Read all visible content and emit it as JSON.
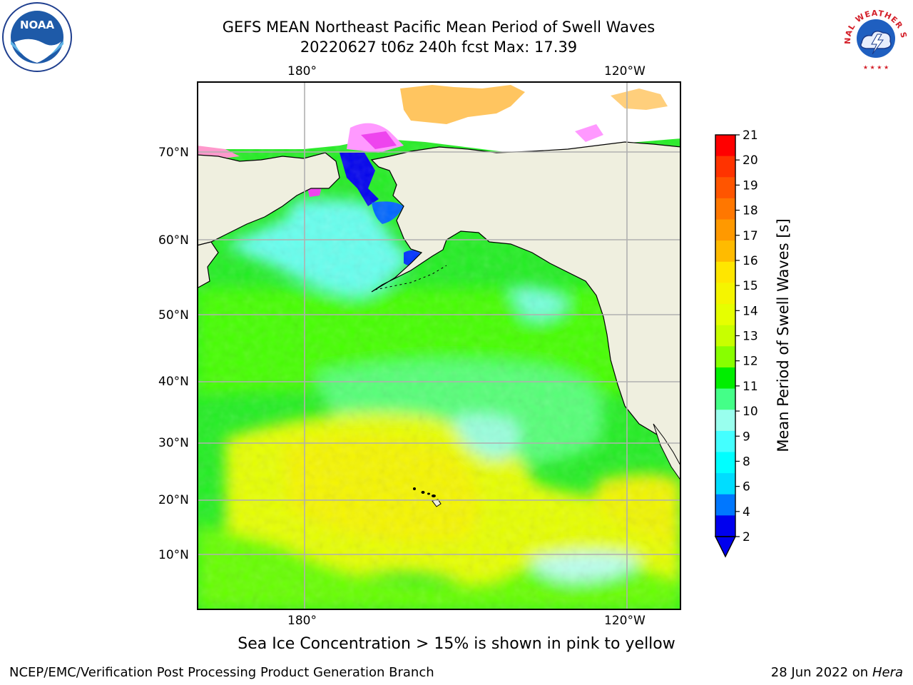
{
  "header": {
    "title_line1": "GEFS MEAN Northeast Pacific Mean Period of Swell Waves",
    "title_line2": "20220627 t06z 240h fcst   Max: 17.39"
  },
  "logos": {
    "left": {
      "name": "noaa-logo",
      "text": "NOAA"
    },
    "right": {
      "name": "nws-logo",
      "text": "NATIONAL WEATHER SERVICE"
    }
  },
  "map": {
    "lon_ticks_top": [
      "180°",
      "120°W"
    ],
    "lon_ticks_bottom": [
      "180°",
      "120°W"
    ],
    "lat_ticks": [
      "70°N",
      "60°N",
      "50°N",
      "40°N",
      "30°N",
      "20°N",
      "10°N"
    ],
    "land_color": "#efefdf",
    "grid_color": "#b0b0b0"
  },
  "colorbar": {
    "label": "Mean Period of Swell Waves [s]",
    "ticks": [
      "21",
      "20",
      "19",
      "18",
      "17",
      "16",
      "15",
      "14",
      "13",
      "12",
      "11",
      "10",
      "9",
      "8",
      "6",
      "4",
      "2"
    ],
    "colors": [
      "#ff0000",
      "#ff3300",
      "#ff5500",
      "#ff7700",
      "#ff9900",
      "#ffbb00",
      "#ffe600",
      "#f5f500",
      "#e6ff00",
      "#c8ff00",
      "#88ff00",
      "#00ee00",
      "#44ff88",
      "#99ffee",
      "#44ffff",
      "#00ffff",
      "#00ddff",
      "#0077ff",
      "#0000ee"
    ]
  },
  "footer": {
    "note": "Sea Ice Concentration > 15% is shown in pink to yellow",
    "credit": "NCEP/EMC/Verification Post Processing Product Generation Branch",
    "date": "28 Jun 2022 on",
    "machine": "Hera"
  }
}
